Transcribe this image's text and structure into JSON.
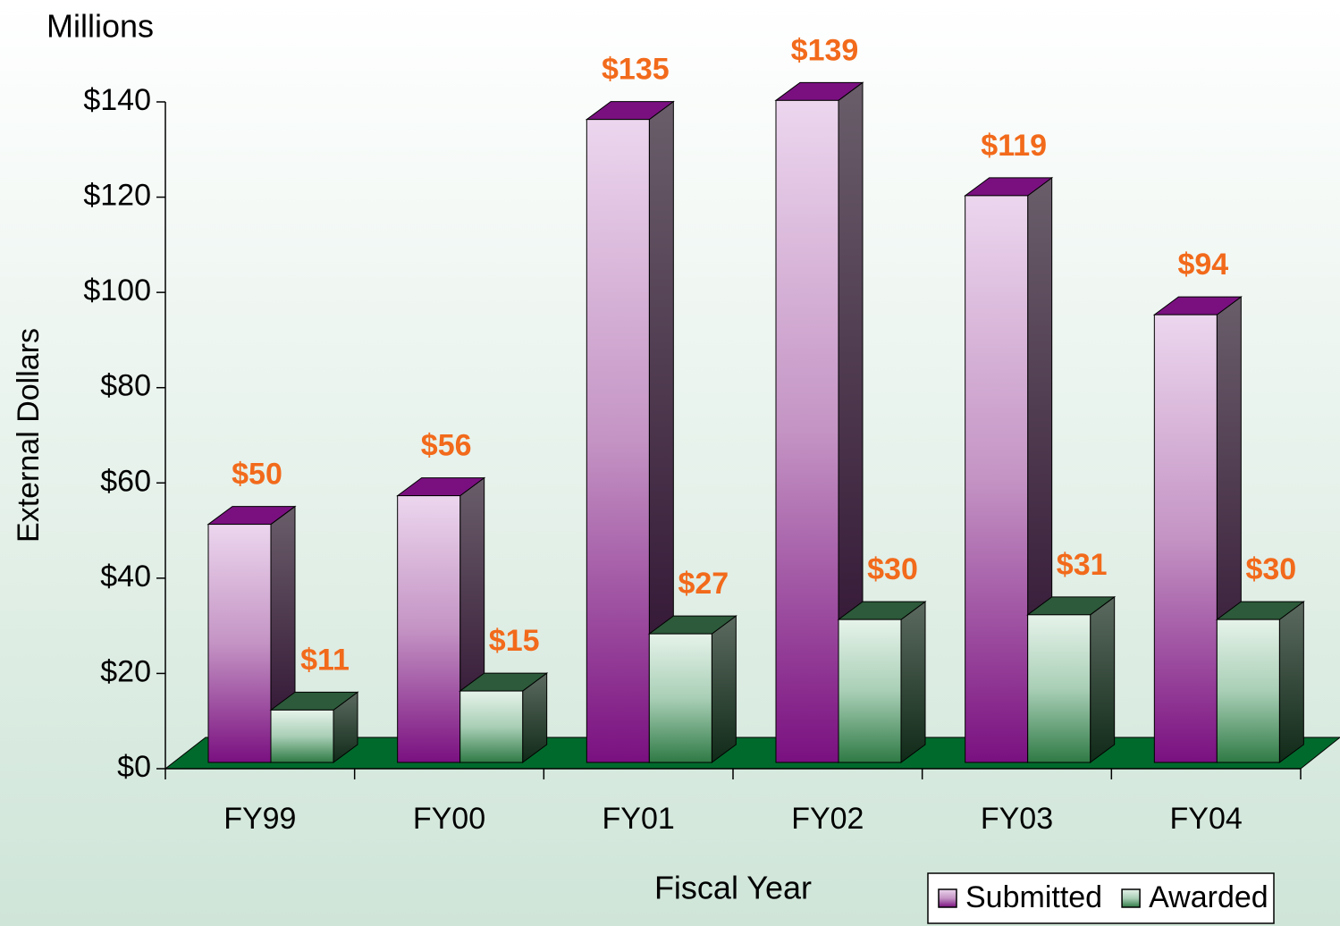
{
  "chart_data": {
    "type": "bar3d",
    "title": "Millions",
    "x_label": "Fiscal Year",
    "y_label": "External Dollars",
    "categories": [
      "FY99",
      "FY00",
      "FY01",
      "FY02",
      "FY03",
      "FY04"
    ],
    "series": [
      {
        "name": "Submitted",
        "color": "#7a1080",
        "values": [
          50,
          56,
          135,
          139,
          119,
          94
        ],
        "value_labels": [
          "$50",
          "$56",
          "$135",
          "$139",
          "$119",
          "$94"
        ]
      },
      {
        "name": "Awarded",
        "color": "#2f7a45",
        "values": [
          11,
          15,
          27,
          30,
          31,
          30
        ],
        "value_labels": [
          "$11",
          "$15",
          "$27",
          "$30",
          "$31",
          "$30"
        ]
      }
    ],
    "ylim": [
      0,
      140
    ],
    "yticks": [
      {
        "value": 0,
        "label": "$0"
      },
      {
        "value": 20,
        "label": "$20"
      },
      {
        "value": 40,
        "label": "$40"
      },
      {
        "value": 60,
        "label": "$60"
      },
      {
        "value": 80,
        "label": "$80"
      },
      {
        "value": 100,
        "label": "$100"
      },
      {
        "value": 120,
        "label": "$120"
      },
      {
        "value": 140,
        "label": "$140"
      }
    ],
    "legend": "bottom-right"
  }
}
